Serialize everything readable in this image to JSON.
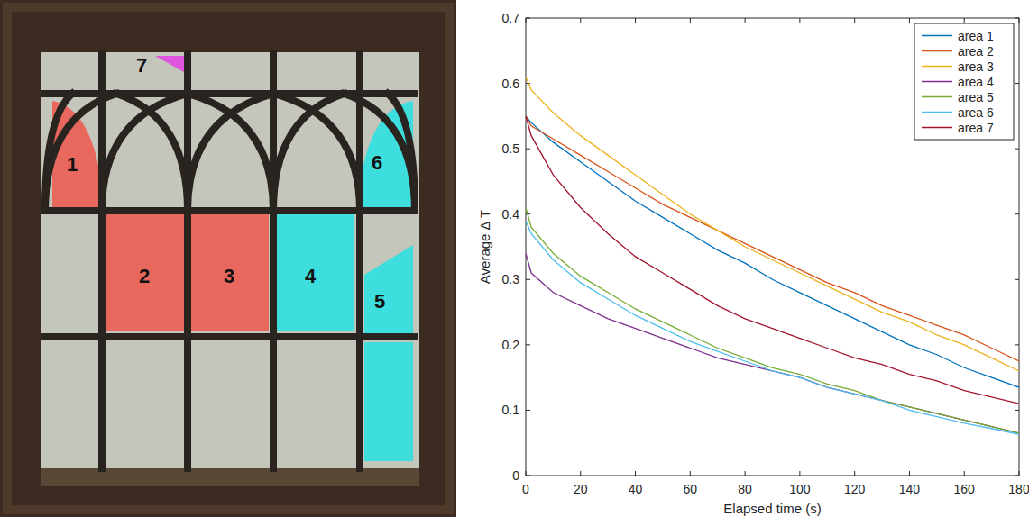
{
  "panel_labels": [
    "1",
    "2",
    "3",
    "4",
    "5",
    "6",
    "7"
  ],
  "chart_data": {
    "type": "line",
    "x_label": "Elapsed time (s)",
    "y_label": "Average Δ T",
    "x": [
      0,
      2,
      10,
      20,
      30,
      40,
      50,
      60,
      70,
      80,
      90,
      100,
      110,
      120,
      130,
      140,
      150,
      160,
      170,
      180
    ],
    "series": [
      {
        "name": "area 1",
        "color": "#0072BD",
        "values": [
          0.55,
          0.54,
          0.51,
          0.48,
          0.45,
          0.42,
          0.395,
          0.37,
          0.345,
          0.325,
          0.3,
          0.28,
          0.26,
          0.24,
          0.22,
          0.2,
          0.185,
          0.165,
          0.15,
          0.135
        ]
      },
      {
        "name": "area 2",
        "color": "#D95319",
        "values": [
          0.55,
          0.535,
          0.515,
          0.49,
          0.465,
          0.44,
          0.415,
          0.395,
          0.375,
          0.355,
          0.335,
          0.315,
          0.295,
          0.28,
          0.26,
          0.245,
          0.23,
          0.215,
          0.195,
          0.175
        ]
      },
      {
        "name": "area 3",
        "color": "#EDB120",
        "values": [
          0.61,
          0.59,
          0.555,
          0.52,
          0.49,
          0.46,
          0.43,
          0.4,
          0.375,
          0.35,
          0.33,
          0.31,
          0.29,
          0.27,
          0.25,
          0.235,
          0.215,
          0.2,
          0.18,
          0.16
        ]
      },
      {
        "name": "area 4",
        "color": "#7E2F8E",
        "values": [
          0.34,
          0.31,
          0.28,
          0.26,
          0.24,
          0.225,
          0.21,
          0.195,
          0.18,
          0.17,
          0.16,
          0.15,
          0.135,
          0.125,
          0.115,
          0.105,
          0.095,
          0.085,
          0.075,
          0.065
        ]
      },
      {
        "name": "area 5",
        "color": "#77AC30",
        "values": [
          0.41,
          0.38,
          0.34,
          0.305,
          0.28,
          0.255,
          0.235,
          0.215,
          0.195,
          0.18,
          0.165,
          0.155,
          0.14,
          0.13,
          0.115,
          0.105,
          0.095,
          0.085,
          0.075,
          0.065
        ]
      },
      {
        "name": "area 6",
        "color": "#4DBEEE",
        "values": [
          0.39,
          0.37,
          0.33,
          0.295,
          0.27,
          0.245,
          0.225,
          0.205,
          0.19,
          0.175,
          0.16,
          0.15,
          0.135,
          0.125,
          0.115,
          0.1,
          0.09,
          0.08,
          0.072,
          0.063
        ]
      },
      {
        "name": "area 7",
        "color": "#A2142F",
        "values": [
          0.55,
          0.52,
          0.46,
          0.41,
          0.37,
          0.335,
          0.31,
          0.285,
          0.26,
          0.24,
          0.225,
          0.21,
          0.195,
          0.18,
          0.17,
          0.155,
          0.145,
          0.13,
          0.12,
          0.11
        ]
      }
    ],
    "xlim": [
      0,
      180
    ],
    "ylim": [
      0,
      0.7
    ],
    "xticks": [
      0,
      20,
      40,
      60,
      80,
      100,
      120,
      140,
      160,
      180
    ],
    "yticks": [
      0,
      0.1,
      0.2,
      0.3,
      0.4,
      0.5,
      0.6,
      0.7
    ],
    "grid": false,
    "legend": "top-right"
  }
}
